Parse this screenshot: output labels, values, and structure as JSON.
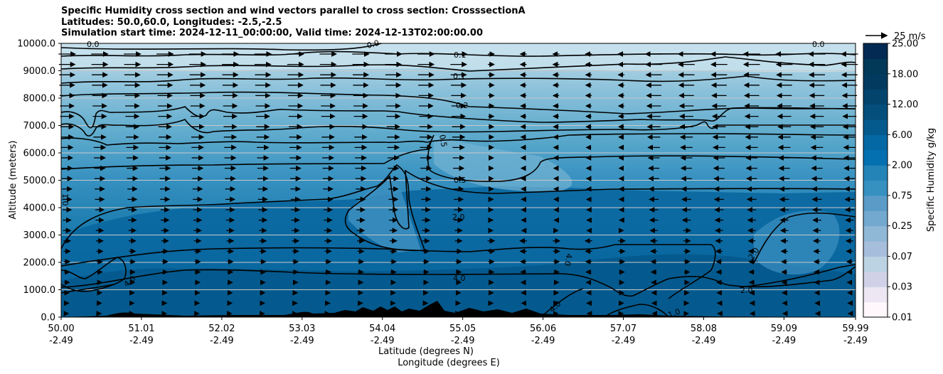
{
  "chart_data": {
    "type": "heatmap",
    "title_lines": [
      "Specific Humidity cross section and wind vectors parallel to cross section: CrosssectionA",
      "Latitudes: 50.0,60.0, Longitudes: -2.5,-2.5",
      "Simulation start time: 2024-12-11_00:00:00, Valid time: 2024-12-13T02:00:00.00"
    ],
    "ylabel": "Altitude (meters)",
    "xlabel_lat": "Latitude (degrees N)",
    "xlabel_lon": "Longitude (degrees E)",
    "ylim": [
      0,
      10000
    ],
    "xlim": [
      50.0,
      59.99
    ],
    "y_ticks": [
      "0.0",
      "1000.0",
      "2000.0",
      "3000.0",
      "4000.0",
      "5000.0",
      "6000.0",
      "7000.0",
      "8000.0",
      "9000.0",
      "10000.0"
    ],
    "y_tick_values": [
      0,
      1000,
      2000,
      3000,
      4000,
      5000,
      6000,
      7000,
      8000,
      9000,
      10000
    ],
    "x_tick_values": [
      50.0,
      51.01,
      52.02,
      53.03,
      54.04,
      55.05,
      56.06,
      57.07,
      58.08,
      59.09,
      59.99
    ],
    "x_ticks_lat": [
      "50.00",
      "51.01",
      "52.02",
      "53.03",
      "54.04",
      "55.05",
      "56.06",
      "57.07",
      "58.08",
      "59.09",
      "59.99"
    ],
    "x_ticks_lon": [
      "-2.49",
      "-2.49",
      "-2.49",
      "-2.49",
      "-2.49",
      "-2.49",
      "-2.49",
      "-2.49",
      "-2.49",
      "-2.49",
      "-2.49"
    ],
    "grid": "horizontal",
    "colorbar": {
      "label": "Specific Humidity g/kg",
      "levels": [
        0.01,
        0.02,
        0.03,
        0.05,
        0.07,
        0.1,
        0.25,
        0.5,
        0.75,
        1.0,
        2.0,
        4.0,
        6.0,
        9.0,
        12.0,
        15.0,
        18.0,
        21.0,
        25.0
      ],
      "tick_labels": [
        "0.01",
        "0.03",
        "0.07",
        "0.25",
        "0.75",
        "2.00",
        "6.00",
        "12.00",
        "18.00",
        "25.00"
      ],
      "colormap": "PuBu"
    },
    "quiver_key": {
      "label": "25 m/s",
      "value": 25
    },
    "contour_labels": [
      "0.0",
      "0.1",
      "0.1",
      "0.2",
      "0.5",
      "0.5",
      "0.0",
      "1.0",
      "2.0",
      "2.0",
      "2.0",
      "4.0",
      "4.0",
      "4.0",
      "4.0",
      "1.0",
      "0.0"
    ],
    "approx_humidity_profile": {
      "altitude_m": [
        0,
        1000,
        2000,
        3000,
        4000,
        5000,
        6000,
        7000,
        8000,
        9000,
        10000
      ],
      "q_gkg": [
        6.0,
        4.5,
        3.0,
        2.2,
        1.5,
        0.8,
        0.4,
        0.2,
        0.12,
        0.07,
        0.02
      ]
    }
  }
}
